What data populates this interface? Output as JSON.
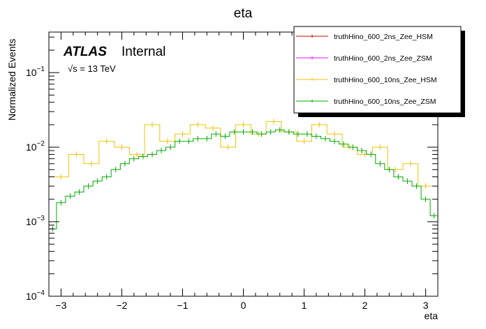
{
  "chart_data": {
    "type": "line",
    "title": "eta",
    "xlabel": "eta",
    "ylabel": "Normalized Events",
    "x_range": [
      -3.2,
      3.2
    ],
    "y_range": [
      0.0001,
      0.35
    ],
    "y_scale": "log",
    "x_ticks": [
      -3,
      -2,
      -1,
      0,
      1,
      2,
      3
    ],
    "x_tick_labels": [
      "−3",
      "−2",
      "−1",
      "0",
      "1",
      "2",
      "3"
    ],
    "y_ticks": [
      0.0001,
      0.001,
      0.01,
      0.1
    ],
    "y_tick_labels": [
      {
        "base": "10",
        "exp": "−4"
      },
      {
        "base": "10",
        "exp": "−3"
      },
      {
        "base": "10",
        "exp": "−2"
      },
      {
        "base": "10",
        "exp": "−1"
      }
    ],
    "grid": false,
    "legend_position": "top-right",
    "annotations": {
      "experiment": "ATLAS",
      "status": "Internal",
      "energy_sqrt": "√s",
      "energy_value": " = 13 TeV"
    },
    "series": [
      {
        "name": "truthHino_600_2ns_Zee_HSM",
        "color": "#cc0000",
        "style": "histogram",
        "x": [],
        "values": []
      },
      {
        "name": "truthHino_600_2ns_Zee_ZSM",
        "color": "#ff00ff",
        "style": "histogram",
        "x": [],
        "values": []
      },
      {
        "name": "truthHino_600_10ns_Zee_HSM",
        "color": "#f2c200",
        "style": "histogram",
        "x": [
          -3.0,
          -2.75,
          -2.5,
          -2.25,
          -2.0,
          -1.75,
          -1.5,
          -1.25,
          -1.0,
          -0.75,
          -0.5,
          -0.25,
          0.0,
          0.25,
          0.5,
          0.75,
          1.0,
          1.25,
          1.5,
          1.75,
          2.0,
          2.25,
          2.5,
          2.75,
          3.0
        ],
        "values": [
          0.004,
          0.008,
          0.006,
          0.012,
          0.01,
          0.008,
          0.02,
          0.012,
          0.015,
          0.02,
          0.018,
          0.01,
          0.02,
          0.015,
          0.022,
          0.016,
          0.012,
          0.02,
          0.015,
          0.01,
          0.008,
          0.01,
          0.005,
          0.006,
          0.003
        ]
      },
      {
        "name": "truthHino_600_10ns_Zee_ZSM",
        "color": "#00aa00",
        "style": "histogram",
        "x": [
          -3.15,
          -3.0,
          -2.85,
          -2.7,
          -2.55,
          -2.4,
          -2.25,
          -2.1,
          -1.95,
          -1.8,
          -1.65,
          -1.5,
          -1.35,
          -1.2,
          -1.05,
          -0.9,
          -0.75,
          -0.6,
          -0.45,
          -0.3,
          -0.15,
          0.0,
          0.15,
          0.3,
          0.45,
          0.6,
          0.75,
          0.9,
          1.05,
          1.2,
          1.35,
          1.5,
          1.65,
          1.8,
          1.95,
          2.1,
          2.25,
          2.4,
          2.55,
          2.7,
          2.85,
          3.0,
          3.15
        ],
        "values": [
          0.0008,
          0.0018,
          0.0022,
          0.0025,
          0.003,
          0.0035,
          0.004,
          0.005,
          0.006,
          0.007,
          0.0075,
          0.008,
          0.009,
          0.01,
          0.012,
          0.012,
          0.013,
          0.013,
          0.015,
          0.014,
          0.016,
          0.016,
          0.016,
          0.015,
          0.016,
          0.017,
          0.016,
          0.015,
          0.015,
          0.014,
          0.013,
          0.012,
          0.011,
          0.01,
          0.009,
          0.008,
          0.006,
          0.005,
          0.004,
          0.0035,
          0.003,
          0.002,
          0.0012
        ]
      }
    ]
  }
}
